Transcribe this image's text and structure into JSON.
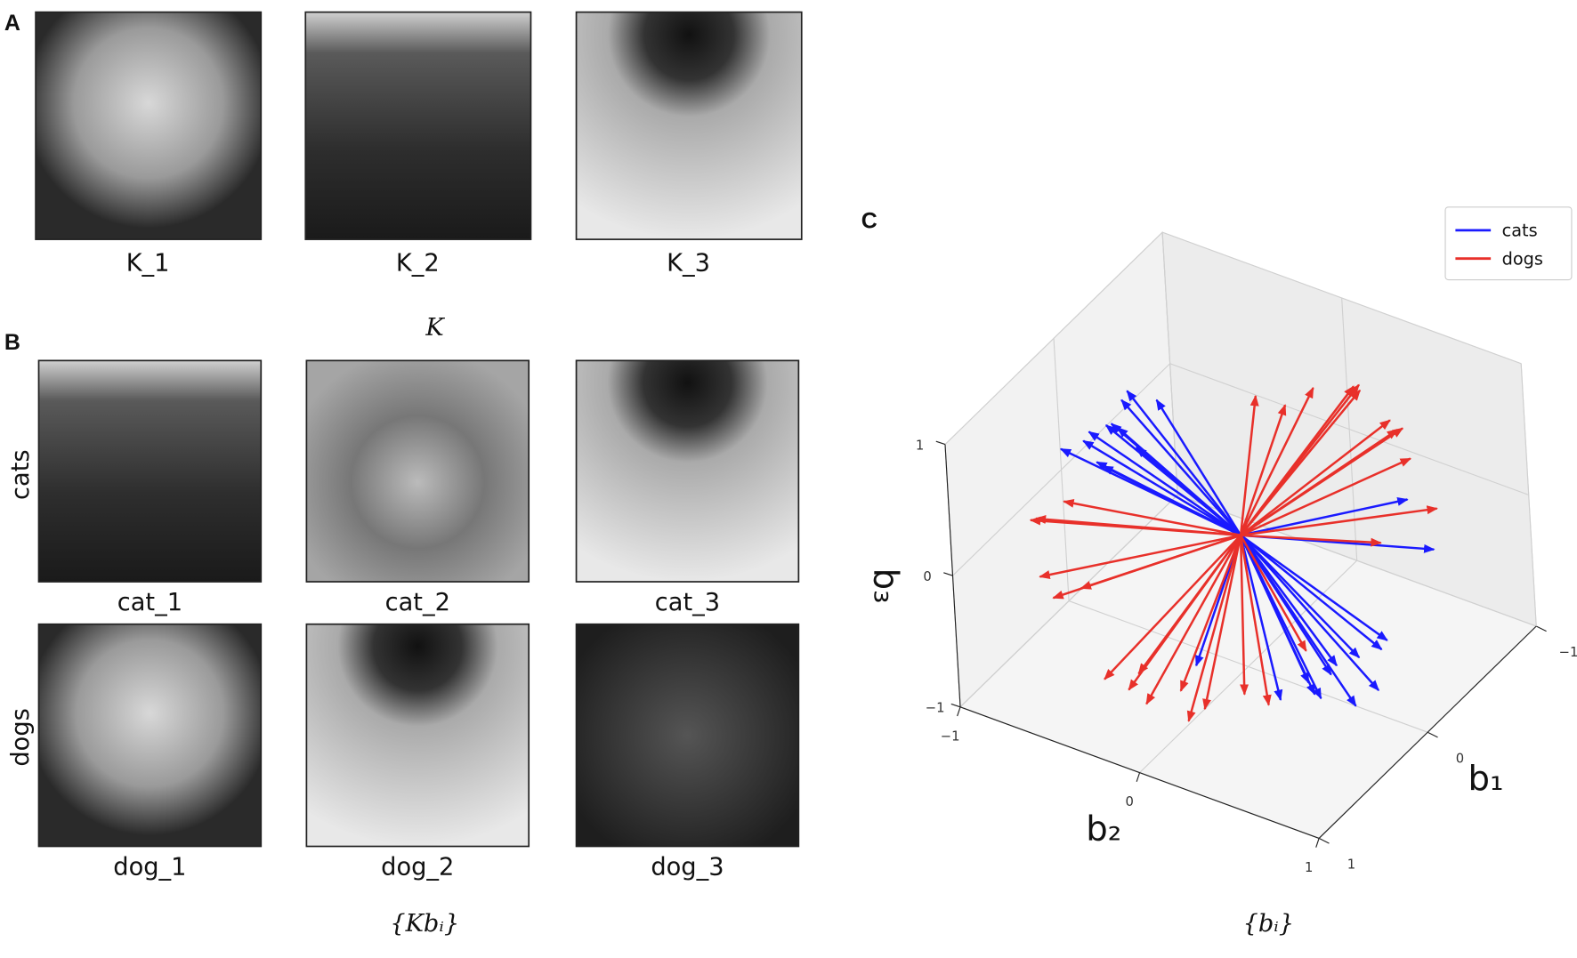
{
  "panels": {
    "A": {
      "label": "A",
      "images": [
        {
          "caption": "K_1"
        },
        {
          "caption": "K_2"
        },
        {
          "caption": "K_3"
        }
      ],
      "caption": "K"
    },
    "B": {
      "label": "B",
      "rows": [
        {
          "label": "cats",
          "images": [
            {
              "caption": "cat_1"
            },
            {
              "caption": "cat_2"
            },
            {
              "caption": "cat_3"
            }
          ]
        },
        {
          "label": "dogs",
          "images": [
            {
              "caption": "dog_1"
            },
            {
              "caption": "dog_2"
            },
            {
              "caption": "dog_3"
            }
          ]
        }
      ],
      "caption": "{Kbᵢ}"
    },
    "C": {
      "label": "C",
      "caption": "{bᵢ}"
    }
  },
  "chart_data": {
    "type": "quiver3d",
    "legend": "upper right",
    "grid": true,
    "xlabel": "b₁",
    "ylabel": "b₂",
    "zlabel": "b₃",
    "xlim": [
      -1,
      1
    ],
    "ylim": [
      -1,
      1
    ],
    "zlim": [
      -1,
      1
    ],
    "xticks": [
      {
        "value": -1,
        "label": "−1"
      },
      0,
      1
    ],
    "yticks": [
      {
        "value": -1,
        "label": "−1"
      },
      0,
      1
    ],
    "zticks": [
      {
        "value": -1,
        "label": "−1"
      },
      0,
      1
    ],
    "series": [
      {
        "name": "cats",
        "color": "#1a1aff",
        "values": [
          [
            0.1,
            -0.6,
            0.6
          ],
          [
            0.0,
            -0.7,
            0.5
          ],
          [
            0.2,
            -0.6,
            0.7
          ],
          [
            -0.1,
            -0.5,
            0.7
          ],
          [
            0.1,
            -0.8,
            0.4
          ],
          [
            0.3,
            -0.6,
            0.5
          ],
          [
            0.0,
            -0.6,
            0.8
          ],
          [
            0.2,
            -0.7,
            0.6
          ],
          [
            0.4,
            -0.5,
            0.6
          ],
          [
            -0.1,
            -0.7,
            0.6
          ],
          [
            0.3,
            -0.8,
            0.5
          ],
          [
            0.1,
            -0.5,
            0.5
          ],
          [
            0.2,
            0.6,
            -0.6
          ],
          [
            0.1,
            0.7,
            -0.5
          ],
          [
            0.3,
            0.6,
            -0.7
          ],
          [
            0.0,
            0.8,
            -0.4
          ],
          [
            0.2,
            0.5,
            -0.8
          ],
          [
            -0.1,
            0.7,
            -0.6
          ],
          [
            0.4,
            0.6,
            -0.5
          ],
          [
            0.1,
            0.8,
            -0.7
          ],
          [
            0.5,
            0.5,
            -0.6
          ],
          [
            0.3,
            0.7,
            -0.4
          ],
          [
            -0.3,
            0.9,
            0.1
          ],
          [
            -0.4,
            0.7,
            0.3
          ],
          [
            0.0,
            0.6,
            -1.0
          ],
          [
            0.3,
            -0.1,
            -0.8
          ]
        ]
      },
      {
        "name": "dogs",
        "color": "#e8302a",
        "values": [
          [
            -0.6,
            0.3,
            0.8
          ],
          [
            -0.8,
            0.2,
            0.6
          ],
          [
            -0.5,
            0.6,
            0.7
          ],
          [
            -0.7,
            0.5,
            0.5
          ],
          [
            -0.4,
            0.2,
            0.9
          ],
          [
            -0.3,
            0.1,
            0.8
          ],
          [
            -0.2,
            0.0,
            0.9
          ],
          [
            -0.5,
            0.4,
            0.9
          ],
          [
            -0.9,
            0.3,
            0.3
          ],
          [
            -0.6,
            0.6,
            0.4
          ],
          [
            0.6,
            -0.8,
            0.2
          ],
          [
            0.4,
            -0.9,
            0.0
          ],
          [
            0.7,
            -0.7,
            -0.1
          ],
          [
            0.5,
            -0.6,
            -0.3
          ],
          [
            0.9,
            -0.5,
            0.0
          ],
          [
            0.3,
            -0.8,
            0.1
          ],
          [
            0.6,
            -0.2,
            -0.9
          ],
          [
            0.4,
            0.0,
            -1.0
          ],
          [
            0.7,
            0.1,
            -0.8
          ],
          [
            0.5,
            -0.3,
            -0.8
          ],
          [
            0.2,
            0.1,
            -1.0
          ],
          [
            0.8,
            -0.3,
            -0.6
          ],
          [
            0.3,
            0.3,
            -0.9
          ],
          [
            0.6,
            0.0,
            -0.7
          ],
          [
            0.9,
            -0.1,
            -0.5
          ],
          [
            -0.3,
            0.6,
            0.0
          ],
          [
            -0.5,
            0.8,
            0.2
          ],
          [
            0.1,
            0.4,
            -0.6
          ]
        ]
      }
    ]
  }
}
